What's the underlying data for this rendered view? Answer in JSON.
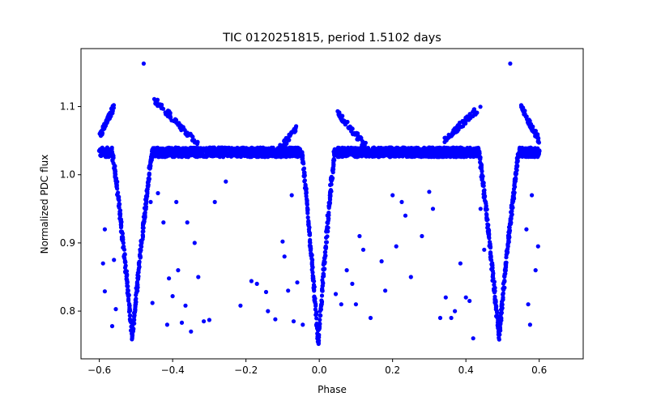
{
  "chart_data": {
    "type": "scatter",
    "title": "TIC 0120251815, period 1.5102 days",
    "xlabel": "Phase",
    "ylabel": "Normalized PDC flux",
    "xlim": [
      -0.65,
      0.72
    ],
    "ylim": [
      0.73,
      1.185
    ],
    "xticks": [
      -0.6,
      -0.4,
      -0.2,
      0.0,
      0.2,
      0.4,
      0.6
    ],
    "xtick_labels": [
      "−0.6",
      "−0.4",
      "−0.2",
      "0.0",
      "0.2",
      "0.4",
      "0.6"
    ],
    "yticks": [
      0.8,
      0.9,
      1.0,
      1.1
    ],
    "ytick_labels": [
      "0.8",
      "0.9",
      "1.0",
      "1.1"
    ],
    "grid": false,
    "legend": "none",
    "marker_color": "#0000ff",
    "baseline_flux": 1.033,
    "primary_eclipse": {
      "centers": [
        -0.51,
        0.49
      ],
      "min_flux": 0.763,
      "half_width": 0.055
    },
    "secondary_eclipse": {
      "center": -0.003,
      "min_flux": 0.752,
      "half_width": 0.045
    },
    "spike_branches": [
      {
        "x": [
          -0.6,
          -0.56
        ],
        "y": [
          1.055,
          1.1
        ]
      },
      {
        "x": [
          -0.45,
          -0.33
        ],
        "y": [
          1.11,
          1.045
        ]
      },
      {
        "x": [
          -0.12,
          -0.06
        ],
        "y": [
          1.03,
          1.07
        ]
      },
      {
        "x": [
          0.05,
          0.13
        ],
        "y": [
          1.09,
          1.04
        ]
      },
      {
        "x": [
          0.34,
          0.44
        ],
        "y": [
          1.05,
          1.1
        ]
      },
      {
        "x": [
          0.55,
          0.6
        ],
        "y": [
          1.1,
          1.05
        ]
      }
    ],
    "outliers": [
      {
        "x": -0.479,
        "y": 1.163
      },
      {
        "x": 0.521,
        "y": 1.163
      },
      {
        "x": -0.585,
        "y": 0.92
      },
      {
        "x": -0.585,
        "y": 0.829
      },
      {
        "x": -0.59,
        "y": 0.87
      },
      {
        "x": -0.565,
        "y": 0.778
      },
      {
        "x": -0.56,
        "y": 0.875
      },
      {
        "x": -0.555,
        "y": 0.803
      },
      {
        "x": -0.46,
        "y": 0.96
      },
      {
        "x": -0.455,
        "y": 0.812
      },
      {
        "x": -0.44,
        "y": 0.973
      },
      {
        "x": -0.425,
        "y": 0.93
      },
      {
        "x": -0.415,
        "y": 0.78
      },
      {
        "x": -0.41,
        "y": 0.848
      },
      {
        "x": -0.4,
        "y": 0.822
      },
      {
        "x": -0.39,
        "y": 0.96
      },
      {
        "x": -0.385,
        "y": 0.86
      },
      {
        "x": -0.375,
        "y": 0.783
      },
      {
        "x": -0.365,
        "y": 0.808
      },
      {
        "x": -0.36,
        "y": 0.93
      },
      {
        "x": -0.35,
        "y": 0.77
      },
      {
        "x": -0.34,
        "y": 0.9
      },
      {
        "x": -0.33,
        "y": 0.85
      },
      {
        "x": -0.315,
        "y": 0.785
      },
      {
        "x": -0.3,
        "y": 0.787
      },
      {
        "x": -0.285,
        "y": 0.96
      },
      {
        "x": -0.255,
        "y": 0.99
      },
      {
        "x": -0.215,
        "y": 0.808
      },
      {
        "x": -0.185,
        "y": 0.844
      },
      {
        "x": -0.17,
        "y": 0.84
      },
      {
        "x": -0.145,
        "y": 0.828
      },
      {
        "x": -0.14,
        "y": 0.8
      },
      {
        "x": -0.12,
        "y": 0.788
      },
      {
        "x": -0.1,
        "y": 0.902
      },
      {
        "x": -0.095,
        "y": 0.88
      },
      {
        "x": -0.085,
        "y": 0.83
      },
      {
        "x": -0.075,
        "y": 0.97
      },
      {
        "x": -0.07,
        "y": 0.785
      },
      {
        "x": -0.06,
        "y": 0.842
      },
      {
        "x": -0.045,
        "y": 0.78
      },
      {
        "x": 0.045,
        "y": 0.825
      },
      {
        "x": 0.06,
        "y": 0.81
      },
      {
        "x": 0.075,
        "y": 0.86
      },
      {
        "x": 0.09,
        "y": 0.84
      },
      {
        "x": 0.1,
        "y": 0.81
      },
      {
        "x": 0.11,
        "y": 0.91
      },
      {
        "x": 0.12,
        "y": 0.89
      },
      {
        "x": 0.14,
        "y": 0.79
      },
      {
        "x": 0.17,
        "y": 0.873
      },
      {
        "x": 0.18,
        "y": 0.83
      },
      {
        "x": 0.2,
        "y": 0.97
      },
      {
        "x": 0.21,
        "y": 0.895
      },
      {
        "x": 0.225,
        "y": 0.96
      },
      {
        "x": 0.235,
        "y": 0.94
      },
      {
        "x": 0.25,
        "y": 0.85
      },
      {
        "x": 0.28,
        "y": 0.91
      },
      {
        "x": 0.3,
        "y": 0.975
      },
      {
        "x": 0.31,
        "y": 0.95
      },
      {
        "x": 0.33,
        "y": 0.79
      },
      {
        "x": 0.345,
        "y": 0.82
      },
      {
        "x": 0.36,
        "y": 0.79
      },
      {
        "x": 0.37,
        "y": 0.8
      },
      {
        "x": 0.385,
        "y": 0.87
      },
      {
        "x": 0.4,
        "y": 0.82
      },
      {
        "x": 0.41,
        "y": 0.815
      },
      {
        "x": 0.42,
        "y": 0.76
      },
      {
        "x": 0.44,
        "y": 0.95
      },
      {
        "x": 0.45,
        "y": 0.89
      },
      {
        "x": 0.565,
        "y": 0.92
      },
      {
        "x": 0.57,
        "y": 0.81
      },
      {
        "x": 0.575,
        "y": 0.78
      },
      {
        "x": 0.58,
        "y": 0.97
      },
      {
        "x": 0.59,
        "y": 0.86
      },
      {
        "x": 0.597,
        "y": 0.895
      }
    ]
  }
}
